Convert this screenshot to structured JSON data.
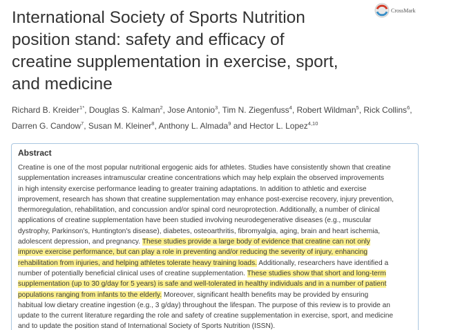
{
  "crossmark": "CrossMark",
  "title": [
    "International Society of Sports Nutrition",
    "position stand: safety and efficacy of",
    "creatine supplementation in exercise, sport,",
    "and medicine"
  ],
  "authors": [
    [
      {
        "name": "Richard B. Kreider",
        "sup": "1*",
        "sep": ", "
      },
      {
        "name": "Douglas S. Kalman",
        "sup": "2",
        "sep": ", "
      },
      {
        "name": "Jose Antonio",
        "sup": "3",
        "sep": ", "
      },
      {
        "name": "Tim N. Ziegenfuss",
        "sup": "4",
        "sep": ", "
      },
      {
        "name": "Robert Wildman",
        "sup": "5",
        "sep": ", "
      },
      {
        "name": "Rick Collins",
        "sup": "6",
        "sep": ","
      }
    ],
    [
      {
        "name": "Darren G. Candow",
        "sup": "7",
        "sep": ", "
      },
      {
        "name": "Susan M. Kleiner",
        "sup": "8",
        "sep": ", "
      },
      {
        "name": "Anthony L. Almada",
        "sup": "9",
        "sep": " and "
      },
      {
        "name": "Hector L. Lopez",
        "sup": "4,10"
      }
    ]
  ],
  "abstract": {
    "heading": "Abstract",
    "highlight_color": "#fcf08e",
    "lines": [
      [
        {
          "text": "Creatine is one of the most popular nutritional ergogenic aids for athletes. Studies have consistently shown that creatine"
        }
      ],
      [
        {
          "text": "supplementation increases intramuscular creatine concentrations which may help explain the observed improvements"
        }
      ],
      [
        {
          "text": "in high intensity exercise performance leading to greater training adaptations. In addition to athletic and exercise"
        }
      ],
      [
        {
          "text": "improvement, research has shown that creatine supplementation may enhance post-exercise recovery, injury prevention,"
        }
      ],
      [
        {
          "text": "thermoregulation, rehabilitation, and concussion and/or spinal cord neuroprotection. Additionally, a number of clinical"
        }
      ],
      [
        {
          "text": "applications of creatine supplementation have been studied involving neurodegenerative diseases (e.g., muscular"
        }
      ],
      [
        {
          "text": "dystrophy, Parkinson's, Huntington's disease), diabetes, osteoarthritis, fibromyalgia, aging, brain and heart ischemia,"
        }
      ],
      [
        {
          "text": "adolescent depression, and pregnancy. "
        },
        {
          "text": "These studies provide a large body of evidence that creatine can not only",
          "highlight": true
        }
      ],
      [
        {
          "text": "improve exercise performance, but can play a role in preventing and/or reducing the severity of injury, enhancing",
          "highlight": true
        }
      ],
      [
        {
          "text": "rehabilitation from injuries, and helping athletes tolerate heavy training loads.",
          "highlight": true
        },
        {
          "text": " Additionally, researchers have identified a"
        }
      ],
      [
        {
          "text": "number of potentially beneficial clinical uses of creatine supplementation. "
        },
        {
          "text": "These studies show that short and long-term",
          "highlight": true
        }
      ],
      [
        {
          "text": "supplementation (up to 30 g/day for 5 years) is safe and well-tolerated in healthy individuals and in a number of patient",
          "highlight": true
        }
      ],
      [
        {
          "text": "populations ranging from infants to the elderly.",
          "highlight": true
        },
        {
          "text": " Moreover, significant health benefits may be provided by ensuring"
        }
      ],
      [
        {
          "text": "habitual low dietary creatine ingestion (e.g., 3 g/day) throughout the lifespan. The purpose of this review is to provide an"
        }
      ],
      [
        {
          "text": "update to the current literature regarding the role and safety of creatine supplementation in exercise, sport, and medicine"
        }
      ],
      [
        {
          "text": "and to update the position stand of International Society of Sports Nutrition (ISSN)."
        }
      ]
    ]
  }
}
